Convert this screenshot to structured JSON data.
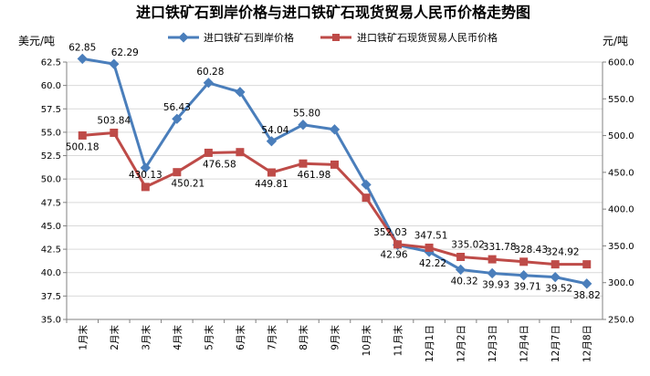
{
  "chart_data": {
    "type": "line",
    "title": "进口铁矿石到岸价格与进口铁矿石现货贸易人民币价格走势图",
    "left_axis": {
      "unit": "美元/吨",
      "min": 35.0,
      "max": 62.5,
      "step": 2.5,
      "ticks": [
        "35.0",
        "37.5",
        "40.0",
        "42.5",
        "45.0",
        "47.5",
        "50.0",
        "52.5",
        "55.0",
        "57.5",
        "60.0",
        "62.5"
      ]
    },
    "right_axis": {
      "unit": "元/吨",
      "min": 250.0,
      "max": 600.0,
      "step": 50,
      "ticks": [
        "250.0",
        "300.0",
        "350.0",
        "400.0",
        "450.0",
        "500.0",
        "550.0",
        "600.0"
      ]
    },
    "categories": [
      "1月末",
      "2月末",
      "3月末",
      "4月末",
      "5月末",
      "6月末",
      "7月末",
      "8月末",
      "9月末",
      "10月末",
      "11月末",
      "12月1日",
      "12月2日",
      "12月3日",
      "12月4日",
      "12月7日",
      "12月8日"
    ],
    "series": [
      {
        "name": "进口铁矿石到岸价格",
        "axis": "left",
        "color": "#4a7ebb",
        "marker": "diamond",
        "values": [
          62.85,
          62.29,
          51.2,
          56.43,
          60.28,
          59.3,
          54.04,
          55.8,
          55.3,
          49.4,
          42.96,
          42.22,
          40.32,
          39.93,
          39.71,
          39.52,
          38.82
        ],
        "labels": [
          "62.85",
          "62.29",
          "",
          "56.43",
          "60.28",
          "",
          "54.04",
          "55.80",
          "",
          "",
          "42.96",
          "42.22",
          "40.32",
          "39.93",
          "39.71",
          "39.52",
          "38.82"
        ]
      },
      {
        "name": "进口铁矿石现货贸易人民币价格",
        "axis": "right",
        "color": "#be4b48",
        "marker": "square",
        "values": [
          500.18,
          503.84,
          430.13,
          450.21,
          476.58,
          477.5,
          449.81,
          461.98,
          460.5,
          415.5,
          352.03,
          347.51,
          335.02,
          331.78,
          328.43,
          324.92,
          324.92
        ],
        "labels": [
          "500.18",
          "503.84",
          "430.13",
          "450.21",
          "476.58",
          "",
          "449.81",
          "461.98",
          "",
          "",
          "352.03",
          "347.51",
          "335.02",
          "331.78",
          "328.43",
          "324.92",
          ""
        ]
      }
    ],
    "grid": true,
    "legend_position": "top"
  }
}
